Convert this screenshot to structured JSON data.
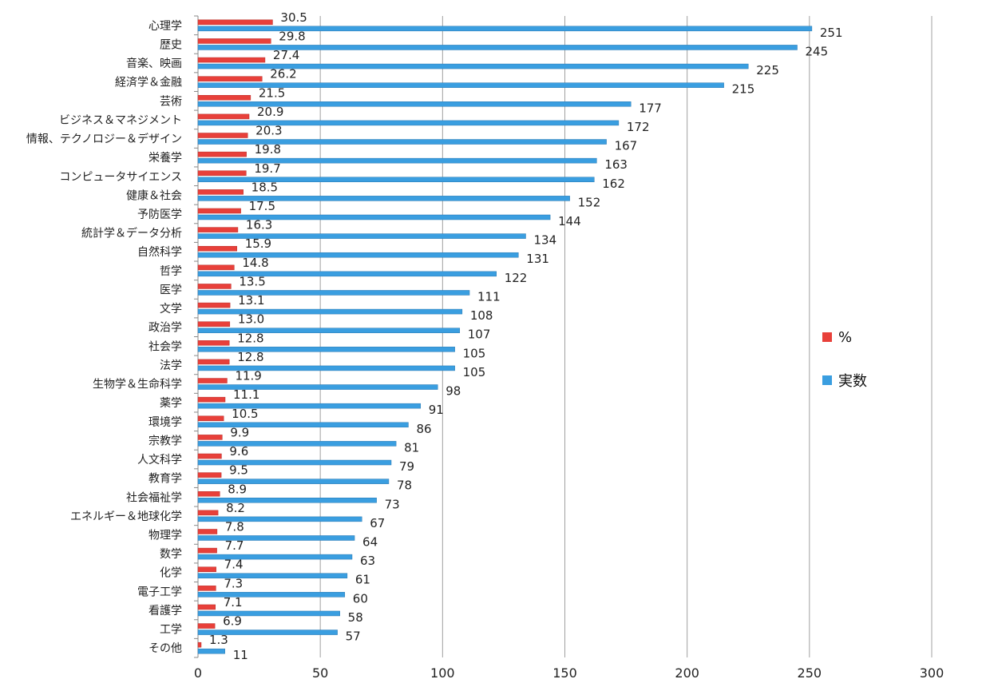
{
  "chart_data": {
    "type": "bar",
    "orientation": "horizontal",
    "categories": [
      "心理学",
      "歴史",
      "音楽、映画",
      "経済学＆金融",
      "芸術",
      "ビジネス＆マネジメント",
      "情報、テクノロジー＆デザイン",
      "栄養学",
      "コンピュータサイエンス",
      "健康＆社会",
      "予防医学",
      "統計学＆データ分析",
      "自然科学",
      "哲学",
      "医学",
      "文学",
      "政治学",
      "社会学",
      "法学",
      "生物学＆生命科学",
      "薬学",
      "環境学",
      "宗教学",
      "人文科学",
      "教育学",
      "社会福祉学",
      "エネルギー＆地球化学",
      "物理学",
      "数学",
      "化学",
      "電子工学",
      "看護学",
      "工学",
      "その他"
    ],
    "series": [
      {
        "name": "%",
        "color": "#e8403a",
        "values": [
          30.5,
          29.8,
          27.4,
          26.2,
          21.5,
          20.9,
          20.3,
          19.8,
          19.7,
          18.5,
          17.5,
          16.3,
          15.9,
          14.8,
          13.5,
          13.1,
          13.0,
          12.8,
          12.8,
          11.9,
          11.1,
          10.5,
          9.9,
          9.6,
          9.5,
          8.9,
          8.2,
          7.8,
          7.7,
          7.4,
          7.3,
          7.1,
          6.9,
          1.3
        ],
        "labels": [
          "30.5",
          "29.8",
          "27.4",
          "26.2",
          "21.5",
          "20.9",
          "20.3",
          "19.8",
          "19.7",
          "18.5",
          "17.5",
          "16.3",
          "15.9",
          "14.8",
          "13.5",
          "13.1",
          "13.0",
          "12.8",
          "12.8",
          "11.9",
          "11.1",
          "10.5",
          "9.9",
          "9.6",
          "9.5",
          "8.9",
          "8.2",
          "7.8",
          "7.7",
          "7.4",
          "7.3",
          "7.1",
          "6.9",
          "1.3"
        ]
      },
      {
        "name": "実数",
        "color": "#3a9ee0",
        "values": [
          251,
          245,
          225,
          215,
          177,
          172,
          167,
          163,
          162,
          152,
          144,
          134,
          131,
          122,
          111,
          108,
          107,
          105,
          105,
          98,
          91,
          86,
          81,
          79,
          78,
          73,
          67,
          64,
          63,
          61,
          60,
          58,
          57,
          11
        ],
        "labels": [
          "251",
          "245",
          "225",
          "215",
          "177",
          "172",
          "167",
          "163",
          "162",
          "152",
          "144",
          "134",
          "131",
          "122",
          "111",
          "108",
          "107",
          "105",
          "105",
          "98",
          "91",
          "86",
          "81",
          "79",
          "78",
          "73",
          "67",
          "64",
          "63",
          "61",
          "60",
          "58",
          "57",
          "11"
        ]
      }
    ],
    "xlim": [
      0,
      300
    ],
    "xticks": [
      0,
      50,
      100,
      150,
      200,
      250,
      300
    ],
    "xtick_labels": [
      "0",
      "50",
      "100",
      "150",
      "200",
      "250",
      "300"
    ],
    "grid": "vertical",
    "legend": {
      "position": "right"
    }
  }
}
